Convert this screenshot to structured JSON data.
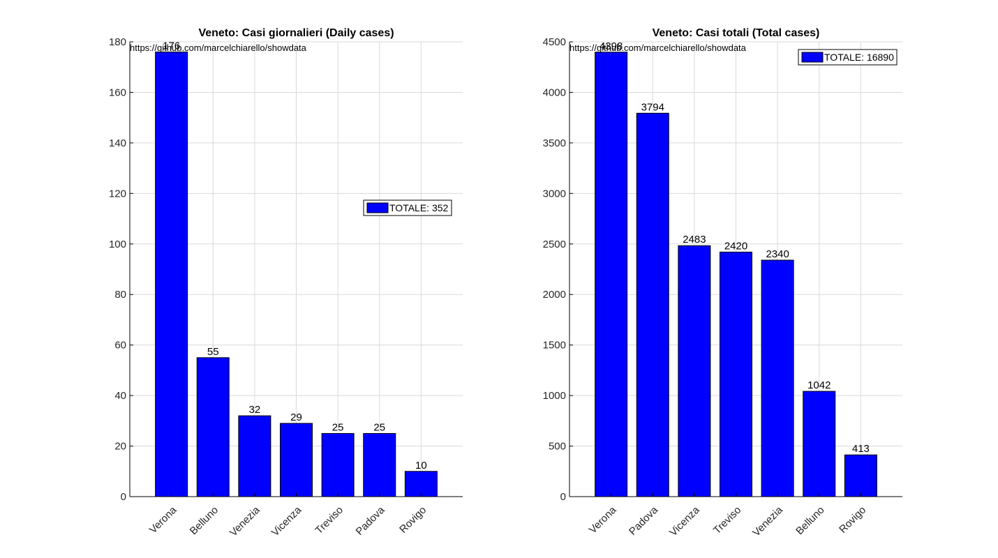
{
  "chart_data": [
    {
      "type": "bar",
      "title": "Veneto: Casi giornalieri (Daily cases)",
      "categories": [
        "Verona",
        "Belluno",
        "Venezia",
        "Vicenza",
        "Treviso",
        "Padova",
        "Rovigo"
      ],
      "values": [
        176,
        55,
        32,
        29,
        25,
        25,
        10
      ],
      "ylim": [
        0,
        180
      ],
      "yticks": [
        0,
        20,
        40,
        60,
        80,
        100,
        120,
        140,
        160,
        180
      ],
      "grid": true,
      "bar_color": "#0000ff",
      "source_note": "https://github.com/marcelchiarello/showdata",
      "legend": {
        "label": "TOTALE: 352",
        "placement": "right"
      }
    },
    {
      "type": "bar",
      "title": "Veneto: Casi totali (Total cases)",
      "categories": [
        "Verona",
        "Padova",
        "Vicenza",
        "Treviso",
        "Venezia",
        "Belluno",
        "Rovigo"
      ],
      "values": [
        4398,
        3794,
        2483,
        2420,
        2340,
        1042,
        413
      ],
      "ylim": [
        0,
        4500
      ],
      "yticks": [
        0,
        500,
        1000,
        1500,
        2000,
        2500,
        3000,
        3500,
        4000,
        4500
      ],
      "grid": true,
      "bar_color": "#0000ff",
      "source_note": "https://github.com/marcelchiarello/showdata",
      "legend": {
        "label": "TOTALE: 16890",
        "placement": "top-right"
      }
    }
  ]
}
